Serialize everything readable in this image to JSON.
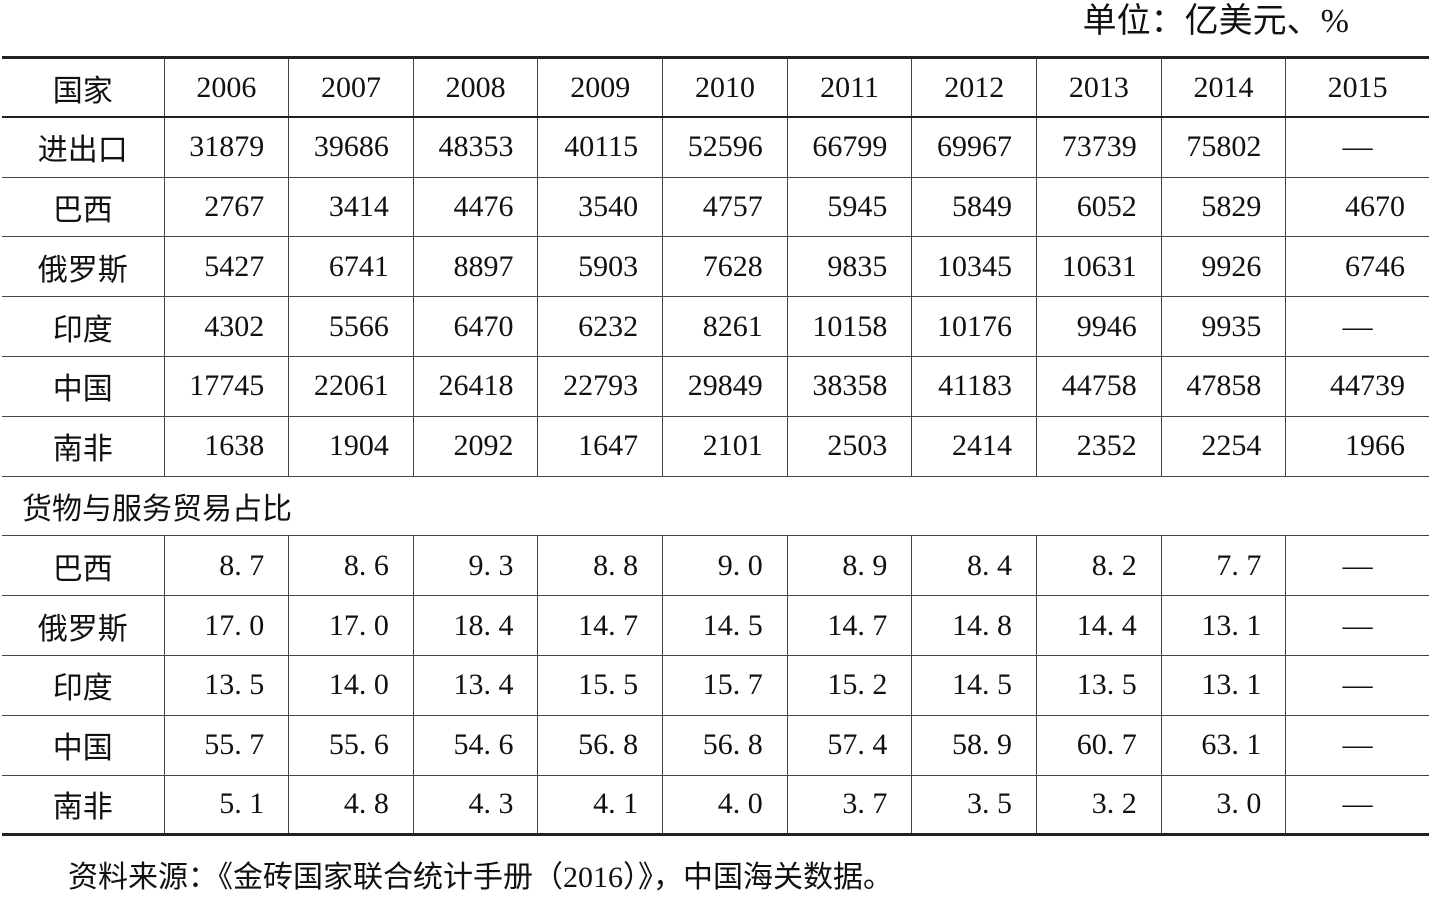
{
  "unit_label": "单位：亿美元、%",
  "header": {
    "country_label": "国家",
    "years": [
      "2006",
      "2007",
      "2008",
      "2009",
      "2010",
      "2011",
      "2012",
      "2013",
      "2014",
      "2015"
    ]
  },
  "trade_rows": [
    {
      "name": "进出口",
      "values": [
        "31879",
        "39686",
        "48353",
        "40115",
        "52596",
        "66799",
        "69967",
        "73739",
        "75802",
        "—"
      ]
    },
    {
      "name": "巴西",
      "values": [
        "2767",
        "3414",
        "4476",
        "3540",
        "4757",
        "5945",
        "5849",
        "6052",
        "5829",
        "4670"
      ]
    },
    {
      "name": "俄罗斯",
      "values": [
        "5427",
        "6741",
        "8897",
        "5903",
        "7628",
        "9835",
        "10345",
        "10631",
        "9926",
        "6746"
      ]
    },
    {
      "name": "印度",
      "values": [
        "4302",
        "5566",
        "6470",
        "6232",
        "8261",
        "10158",
        "10176",
        "9946",
        "9935",
        "—"
      ]
    },
    {
      "name": "中国",
      "values": [
        "17745",
        "22061",
        "26418",
        "22793",
        "29849",
        "38358",
        "41183",
        "44758",
        "47858",
        "44739"
      ]
    },
    {
      "name": "南非",
      "values": [
        "1638",
        "1904",
        "2092",
        "1647",
        "2101",
        "2503",
        "2414",
        "2352",
        "2254",
        "1966"
      ]
    }
  ],
  "share_section_label": "货物与服务贸易占比",
  "share_rows": [
    {
      "name": "巴西",
      "values": [
        "8. 7",
        "8. 6",
        "9. 3",
        "8. 8",
        "9. 0",
        "8. 9",
        "8. 4",
        "8. 2",
        "7. 7",
        "—"
      ]
    },
    {
      "name": "俄罗斯",
      "values": [
        "17. 0",
        "17. 0",
        "18. 4",
        "14. 7",
        "14. 5",
        "14. 7",
        "14. 8",
        "14. 4",
        "13. 1",
        "—"
      ]
    },
    {
      "name": "印度",
      "values": [
        "13. 5",
        "14. 0",
        "13. 4",
        "15. 5",
        "15. 7",
        "15. 2",
        "14. 5",
        "13. 5",
        "13. 1",
        "—"
      ]
    },
    {
      "name": "中国",
      "values": [
        "55. 7",
        "55. 6",
        "54. 6",
        "56. 8",
        "56. 8",
        "57. 4",
        "58. 9",
        "60. 7",
        "63. 1",
        "—"
      ]
    },
    {
      "name": "南非",
      "values": [
        "5. 1",
        "4. 8",
        "4. 3",
        "4. 1",
        "4. 0",
        "3. 7",
        "3. 5",
        "3. 2",
        "3. 0",
        "—"
      ]
    }
  ],
  "source_note": "资料来源：《金砖国家联合统计手册（2016）》，中国海关数据。"
}
